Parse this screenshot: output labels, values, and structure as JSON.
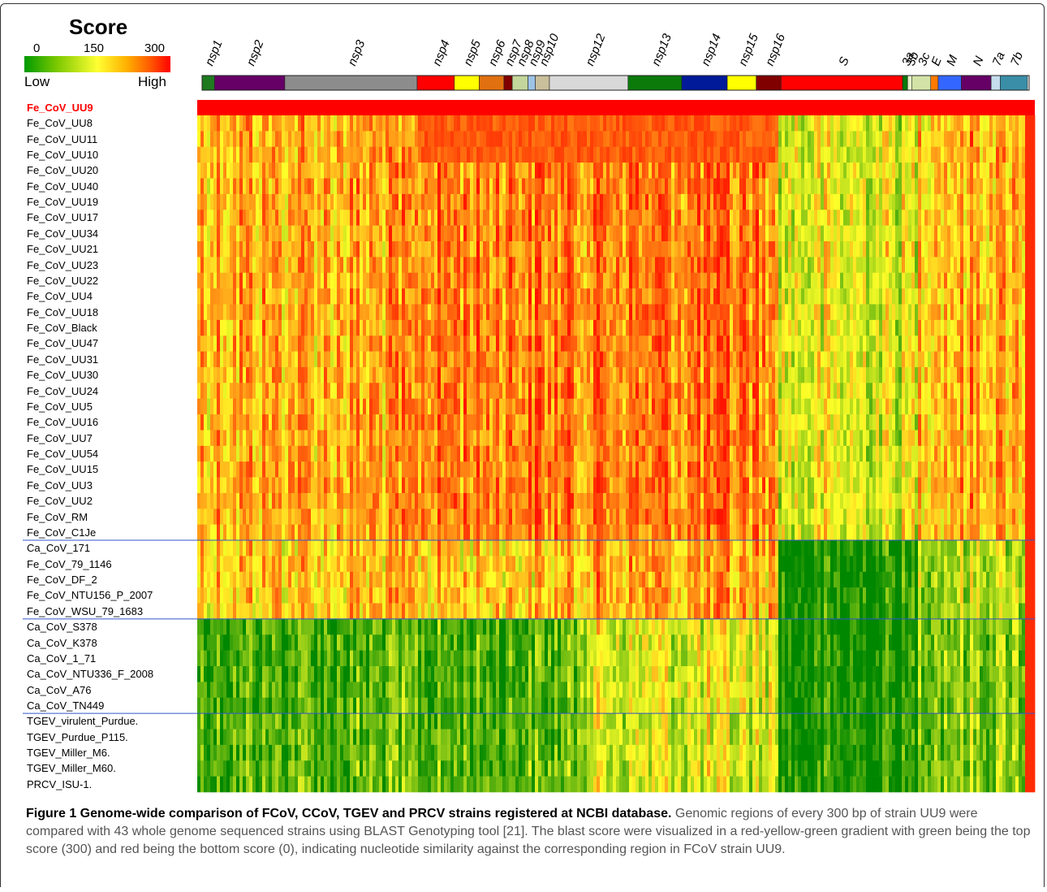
{
  "legend": {
    "title": "Score",
    "ticks": [
      "0",
      "150",
      "300"
    ],
    "low_label": "Low",
    "high_label": "High"
  },
  "gene_regions": [
    {
      "name": "nsp1",
      "color": "#1f7a1f",
      "start": 0.0,
      "end": 1.5
    },
    {
      "name": "nsp2",
      "color": "#660066",
      "start": 1.5,
      "end": 10.0
    },
    {
      "name": "nsp3",
      "color": "#8c8c8c",
      "start": 10.0,
      "end": 26.0
    },
    {
      "name": "nsp4",
      "color": "#ff0000",
      "start": 26.0,
      "end": 30.5
    },
    {
      "name": "nsp5",
      "color": "#ffff00",
      "start": 30.5,
      "end": 33.5
    },
    {
      "name": "nsp6",
      "color": "#e07010",
      "start": 33.5,
      "end": 36.5
    },
    {
      "name": "nsp7",
      "color": "#800000",
      "start": 36.5,
      "end": 37.5
    },
    {
      "name": "nsp8",
      "color": "#c3d69b",
      "start": 37.5,
      "end": 39.4
    },
    {
      "name": "nsp9",
      "color": "#9dc3e6",
      "start": 39.4,
      "end": 40.3
    },
    {
      "name": "nsp10",
      "color": "#c9bf9b",
      "start": 40.3,
      "end": 42.0
    },
    {
      "name": "nsp12",
      "color": "#d9d9d9",
      "start": 42.0,
      "end": 51.5
    },
    {
      "name": "nsp13",
      "color": "#0b7a0b",
      "start": 51.5,
      "end": 58.0
    },
    {
      "name": "nsp14",
      "color": "#001a99",
      "start": 58.0,
      "end": 63.5
    },
    {
      "name": "nsp15",
      "color": "#ffff00",
      "start": 63.5,
      "end": 67.0
    },
    {
      "name": "nsp16",
      "color": "#800000",
      "start": 67.0,
      "end": 70.0
    },
    {
      "name": "S",
      "color": "#ff0000",
      "start": 70.0,
      "end": 84.7
    },
    {
      "name": "3a",
      "color": "#0b7a0b",
      "start": 84.7,
      "end": 85.3
    },
    {
      "name": "3b",
      "color": "#e6f2c8",
      "start": 85.3,
      "end": 85.8
    },
    {
      "name": "3c",
      "color": "#d3e3a7",
      "start": 85.8,
      "end": 88.1
    },
    {
      "name": "E",
      "color": "#ff7a00",
      "start": 88.1,
      "end": 89.0
    },
    {
      "name": "M",
      "color": "#3366ff",
      "start": 89.0,
      "end": 91.8
    },
    {
      "name": "N",
      "color": "#660066",
      "start": 91.8,
      "end": 95.4
    },
    {
      "name": "7a",
      "color": "#c5dcec",
      "start": 95.4,
      "end": 96.5
    },
    {
      "name": "7b",
      "color": "#3a8ea8",
      "start": 96.5,
      "end": 99.8
    }
  ],
  "strains": [
    "Fe_CoV_UU9",
    "Fe_CoV_UU8",
    "Fe_CoV_UU11",
    "Fe_CoV_UU10",
    "Fe_CoV_UU20",
    "Fe_CoV_UU40",
    "Fe_CoV_UU19",
    "Fe_CoV_UU17",
    "Fe_CoV_UU34",
    "Fe_CoV_UU21",
    "Fe_CoV_UU23",
    "Fe_CoV_UU22",
    "Fe_CoV_UU4",
    "Fe_CoV_UU18",
    "Fe_CoV_Black",
    "Fe_CoV_UU47",
    "Fe_CoV_UU31",
    "Fe_CoV_UU30",
    "Fe_CoV_UU24",
    "Fe_CoV_UU5",
    "Fe_CoV_UU16",
    "Fe_CoV_UU7",
    "Fe_CoV_UU54",
    "Fe_CoV_UU15",
    "Fe_CoV_UU3",
    "Fe_CoV_UU2",
    "Fe_CoV_RM",
    "Fe_CoV_C1Je",
    "Ca_CoV_171",
    "Fe_CoV_79_1146",
    "Fe_CoV_DF_2",
    "Fe_CoV_NTU156_P_2007",
    "Fe_CoV_WSU_79_1683",
    "Ca_CoV_S378",
    "Ca_CoV_K378",
    "Ca_CoV_1_71",
    "Ca_CoV_NTU336_F_2008",
    "Ca_CoV_A76",
    "Ca_CoV_TN449",
    "TGEV_virulent_Purdue.",
    "TGEV_Purdue_P115.",
    "TGEV_Miller_M6.",
    "TGEV_Miller_M60.",
    "PRCV_ISU-1."
  ],
  "group_separators_after_row": [
    27,
    32,
    38
  ],
  "caption": {
    "title": "Figure 1 Genome-wide comparison of FCoV, CCoV, TGEV and PRCV strains registered at NCBI database.",
    "body": "Genomic regions of every 300 bp of strain UU9 were compared with 43 whole genome sequenced strains using BLAST Genotyping tool [21]. The blast score were visualized in a red-yellow-green gradient with green being the top score (300) and red being the bottom score (0), indicating nucleotide similarity against the corresponding region in FCoV strain UU9."
  },
  "colors": {
    "highlight": "#ff0000",
    "separator": "#3355cc",
    "gradient": [
      "#009a00",
      "#ffff33",
      "#ff0000"
    ]
  }
}
